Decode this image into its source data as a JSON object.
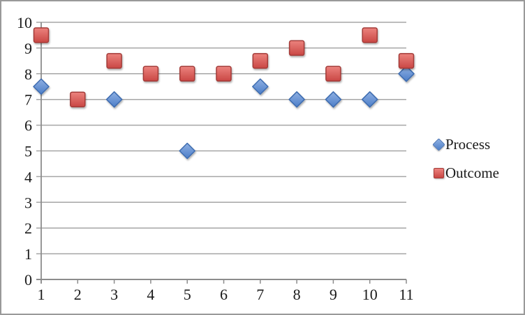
{
  "chart_data": {
    "type": "scatter",
    "title": "",
    "xlabel": "",
    "ylabel": "",
    "categories": [
      1,
      2,
      3,
      4,
      5,
      6,
      7,
      8,
      9,
      10,
      11
    ],
    "x_tick_labels": [
      "1",
      "2",
      "3",
      "4",
      "5",
      "6",
      "7",
      "8",
      "9",
      "10",
      "11"
    ],
    "y_tick_labels": [
      "0",
      "1",
      "2",
      "3",
      "4",
      "5",
      "6",
      "7",
      "8",
      "9",
      "10"
    ],
    "ylim": [
      0,
      10
    ],
    "ytick_step": 1,
    "grid": "horizontal",
    "legend_position": "right",
    "series": [
      {
        "name": "Process",
        "marker": "diamond",
        "fill_top": "#8FB0E2",
        "fill_bottom": "#4C7EC8",
        "stroke": "#3E6CB0",
        "values": [
          7.5,
          null,
          7,
          null,
          5,
          null,
          7.5,
          7,
          7,
          7,
          8
        ]
      },
      {
        "name": "Outcome",
        "marker": "square",
        "fill_top": "#EC837E",
        "fill_bottom": "#C94744",
        "stroke": "#A33B37",
        "values": [
          9.5,
          7,
          8.5,
          8,
          8,
          8,
          8.5,
          9,
          8,
          9.5,
          8.5
        ]
      }
    ]
  },
  "style": {
    "gridline_color": "#A6A6A6",
    "axis_color": "#8C8C8C",
    "text_color": "#1A1A1A",
    "background": "#FFFFFF",
    "border_color": "#999999"
  }
}
